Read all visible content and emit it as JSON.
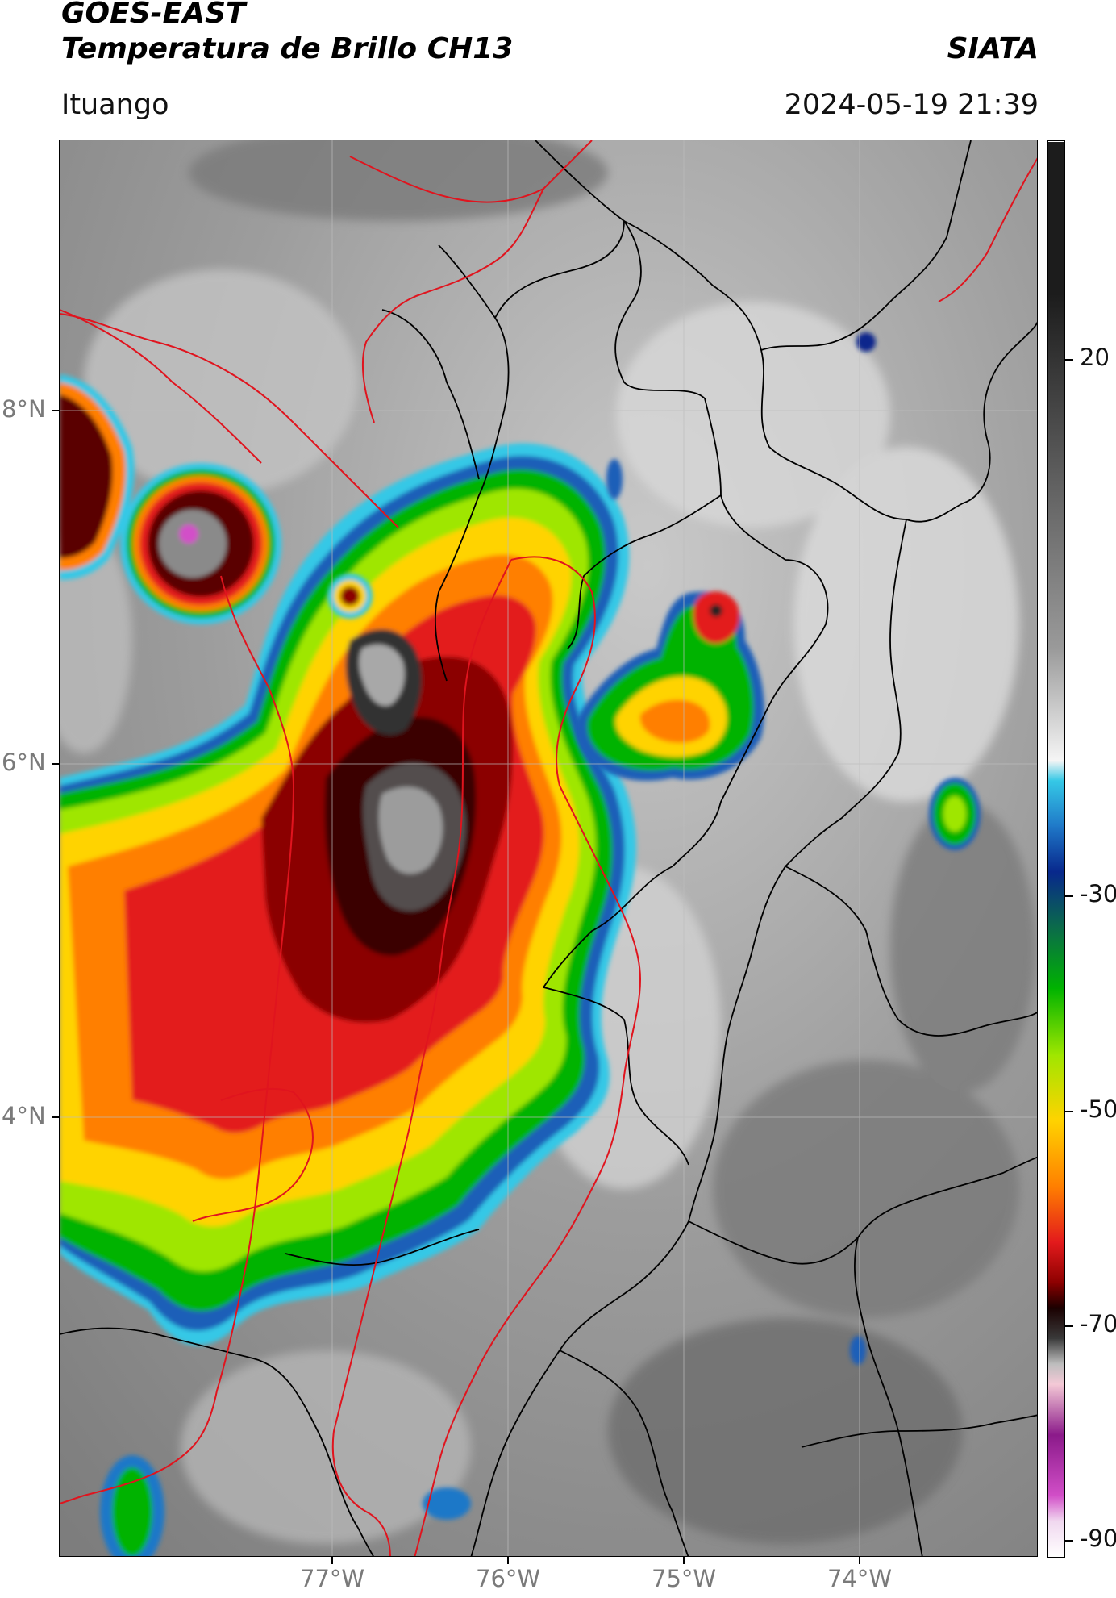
{
  "header": {
    "title_line1": "GOES-EAST",
    "title_line2": "Temperatura de Brillo CH13",
    "organization": "SIATA",
    "place": "Ituango",
    "timestamp": "2024-05-19 21:39"
  },
  "map": {
    "lat_labels": [
      "8°N",
      "6°N",
      "4°N"
    ],
    "lon_labels": [
      "77°W",
      "76°W",
      "75°W",
      "74°W"
    ],
    "background_color": "#8e8e8e",
    "grid_color": "#b0b0b0",
    "admin_border_color": "#000000",
    "ituango_region_border_color": "#e0141e"
  },
  "colorbar": {
    "tick_labels": [
      "20",
      "-30",
      "-50",
      "-70",
      "-90"
    ],
    "stops": [
      {
        "color": "#ffffff"
      },
      {
        "color": "#f0d8ef"
      },
      {
        "color": "#d24fc8"
      },
      {
        "color": "#8b1a8a"
      },
      {
        "color": "#f4c9d6"
      },
      {
        "color": "#bdbdbd"
      },
      {
        "color": "#3a3a3a"
      },
      {
        "color": "#1a0000"
      },
      {
        "color": "#8b0000"
      },
      {
        "color": "#e31a1c"
      },
      {
        "color": "#ff7f00"
      },
      {
        "color": "#ffd300"
      },
      {
        "color": "#9fe600"
      },
      {
        "color": "#00b300"
      },
      {
        "color": "#0b6b4a"
      },
      {
        "color": "#08288c"
      },
      {
        "color": "#1f78c8"
      },
      {
        "color": "#35c8e6"
      },
      {
        "color": "#f5f5f5"
      },
      {
        "color": "#9a9a9a"
      },
      {
        "color": "#5c5c5c"
      },
      {
        "color": "#1c1c1c"
      }
    ]
  }
}
